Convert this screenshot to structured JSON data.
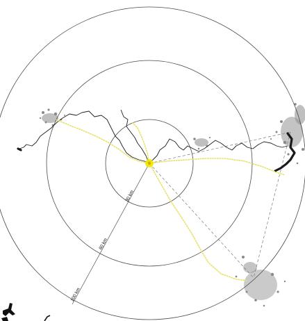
{
  "map": {
    "ring_labels": [
      "30 km",
      "60 km",
      "100 km"
    ],
    "colors": {
      "rings": "#4a4a4a",
      "route": "#e7e26a",
      "center_marker": "#f2e600",
      "river": "#1e1e1e",
      "settlement": "#8a8a8a"
    }
  }
}
